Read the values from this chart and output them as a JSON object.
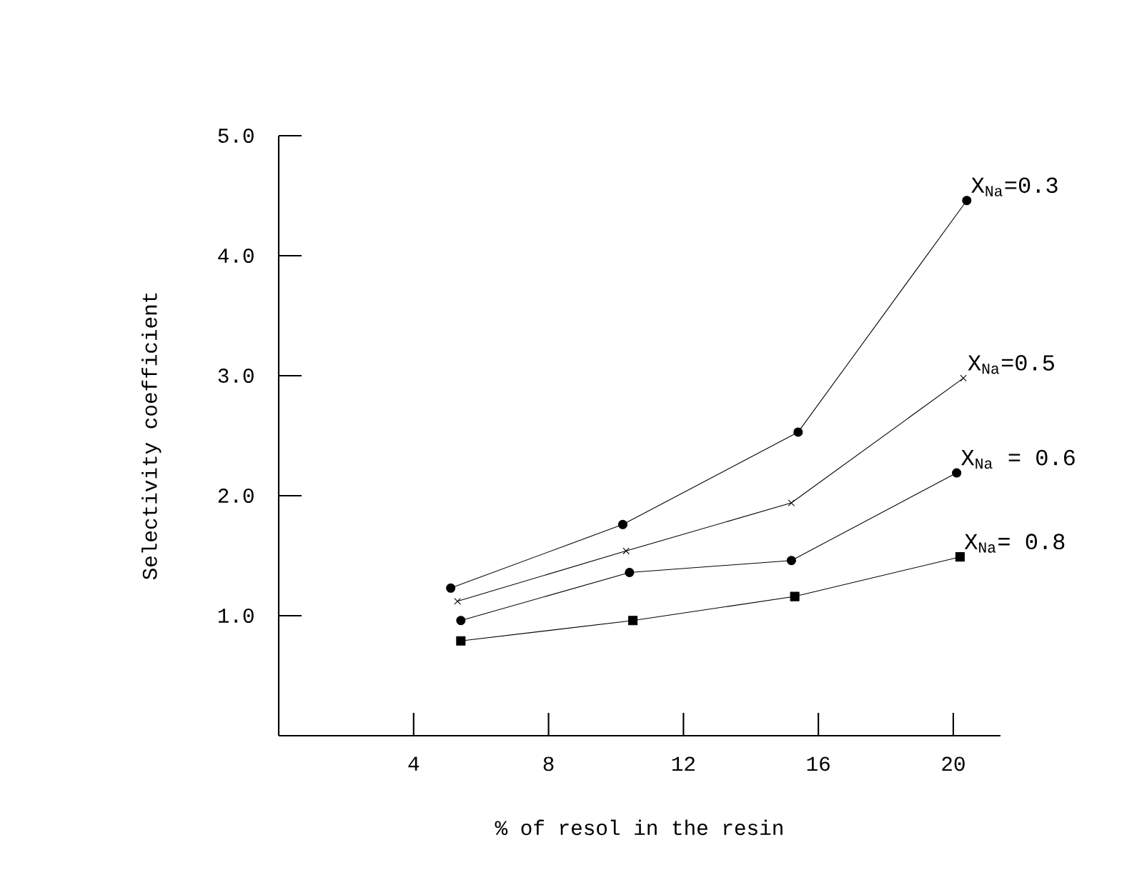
{
  "chart_data": {
    "type": "line",
    "xlabel": "% of resol in the resin",
    "ylabel": "Selectivity coefficient",
    "xlim": [
      0,
      21.4
    ],
    "ylim": [
      0,
      5
    ],
    "xticks": [
      4,
      8,
      12,
      16,
      20
    ],
    "yticks": [
      {
        "value": 1,
        "label": "1.0"
      },
      {
        "value": 2,
        "label": "2.0"
      },
      {
        "value": 3,
        "label": "3.0"
      },
      {
        "value": 4,
        "label": "4.0"
      },
      {
        "value": 5,
        "label": "5.0"
      }
    ],
    "grid": false,
    "legend": false,
    "line_style": "solid",
    "series": [
      {
        "name": "X$_{Na}$=0.3",
        "color": "#000000",
        "marker": "circle",
        "x": [
          5.1,
          10.2,
          15.4,
          20.4
        ],
        "values": [
          1.23,
          1.76,
          2.53,
          4.46
        ]
      },
      {
        "name": "X$_{Na}$=0.5",
        "color": "#000000",
        "marker": "cross",
        "x": [
          5.3,
          10.3,
          15.2,
          20.3
        ],
        "values": [
          1.12,
          1.54,
          1.94,
          2.98
        ]
      },
      {
        "name": "X$_{Na}$ = 0.6",
        "color": "#000000",
        "marker": "circle",
        "x": [
          5.4,
          10.4,
          15.2,
          20.1
        ],
        "values": [
          0.96,
          1.36,
          1.46,
          2.19
        ]
      },
      {
        "name": "X$_{Na}$= 0.8",
        "color": "#000000",
        "marker": "square",
        "x": [
          5.4,
          10.5,
          15.3,
          20.2
        ],
        "values": [
          0.79,
          0.96,
          1.16,
          1.49
        ]
      }
    ]
  }
}
